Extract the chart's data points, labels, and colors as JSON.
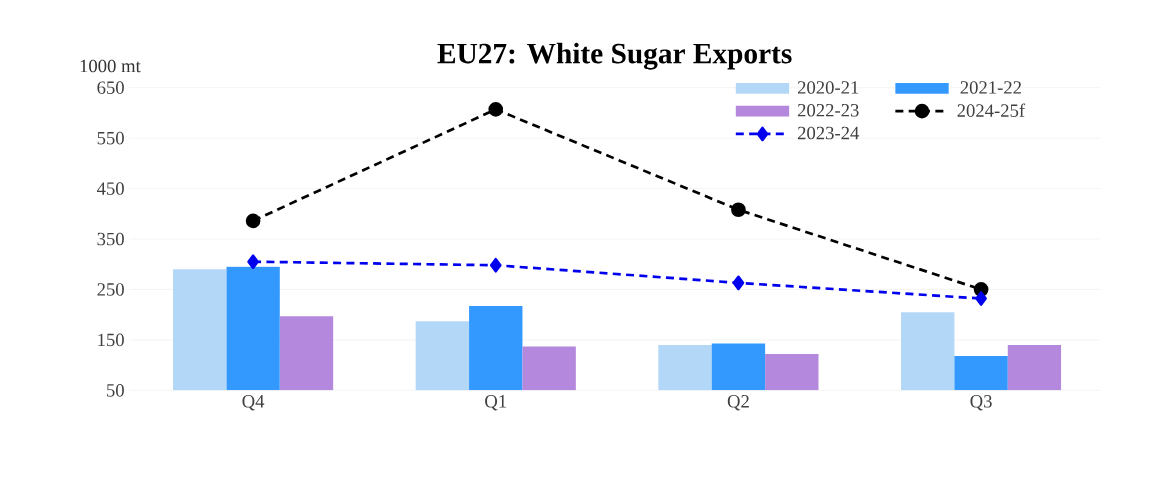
{
  "chart_data": {
    "type": "bar",
    "title": "EU27: White Sugar Exports",
    "ylabel": "1000 mt",
    "categories": [
      "Q4",
      "Q1",
      "Q2",
      "Q3"
    ],
    "series": [
      {
        "name": "2020-21",
        "color": "#b3d7f7",
        "values": [
          290,
          187,
          140,
          205
        ]
      },
      {
        "name": "2021-22",
        "color": "#3399ff",
        "values": [
          295,
          217,
          143,
          118
        ]
      },
      {
        "name": "2022-23",
        "color": "#b388dd",
        "values": [
          197,
          137,
          122,
          140
        ]
      },
      {
        "name": "2024-25f",
        "type": "line",
        "color": "#000000",
        "marker": "circle",
        "line_style": "dashed",
        "values": [
          386,
          607,
          408,
          250
        ]
      },
      {
        "name": "2023-24",
        "type": "line",
        "color": "#0000ee",
        "marker": "diamond",
        "line_style": "dashed",
        "values": [
          305,
          298,
          263,
          232
        ]
      }
    ],
    "ylim": [
      50,
      650
    ],
    "yticks": [
      50,
      150,
      250,
      350,
      450,
      550,
      650
    ],
    "grid": "y",
    "legend": "top right"
  }
}
